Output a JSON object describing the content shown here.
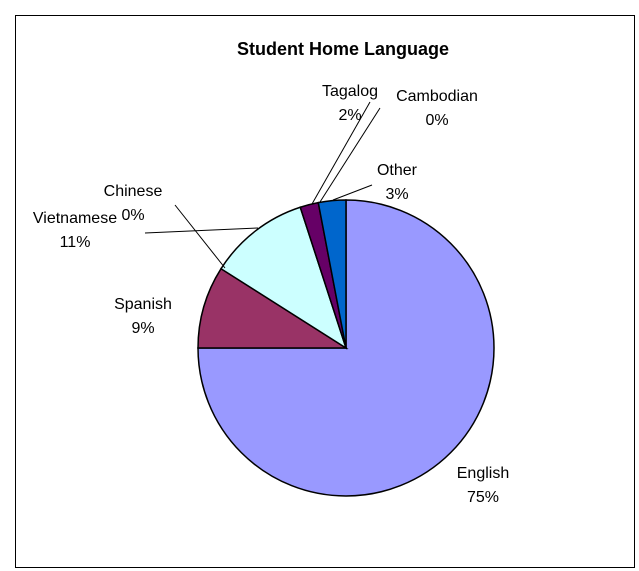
{
  "chart_data": {
    "type": "pie",
    "title": "Student Home Language",
    "slices": [
      {
        "label": "English",
        "pct_label": "75%",
        "value": 75,
        "color": "#9999FF"
      },
      {
        "label": "Spanish",
        "pct_label": "9%",
        "value": 9,
        "color": "#993366"
      },
      {
        "label": "Chinese",
        "pct_label": "0%",
        "value": 0,
        "color": "#FFFFCC"
      },
      {
        "label": "Vietnamese",
        "pct_label": "11%",
        "value": 11,
        "color": "#CCFFFF"
      },
      {
        "label": "Tagalog",
        "pct_label": "2%",
        "value": 2,
        "color": "#660066"
      },
      {
        "label": "Cambodian",
        "pct_label": "0%",
        "value": 0,
        "color": "#FF8080"
      },
      {
        "label": "Other",
        "pct_label": "3%",
        "value": 3,
        "color": "#0066CC"
      }
    ]
  }
}
